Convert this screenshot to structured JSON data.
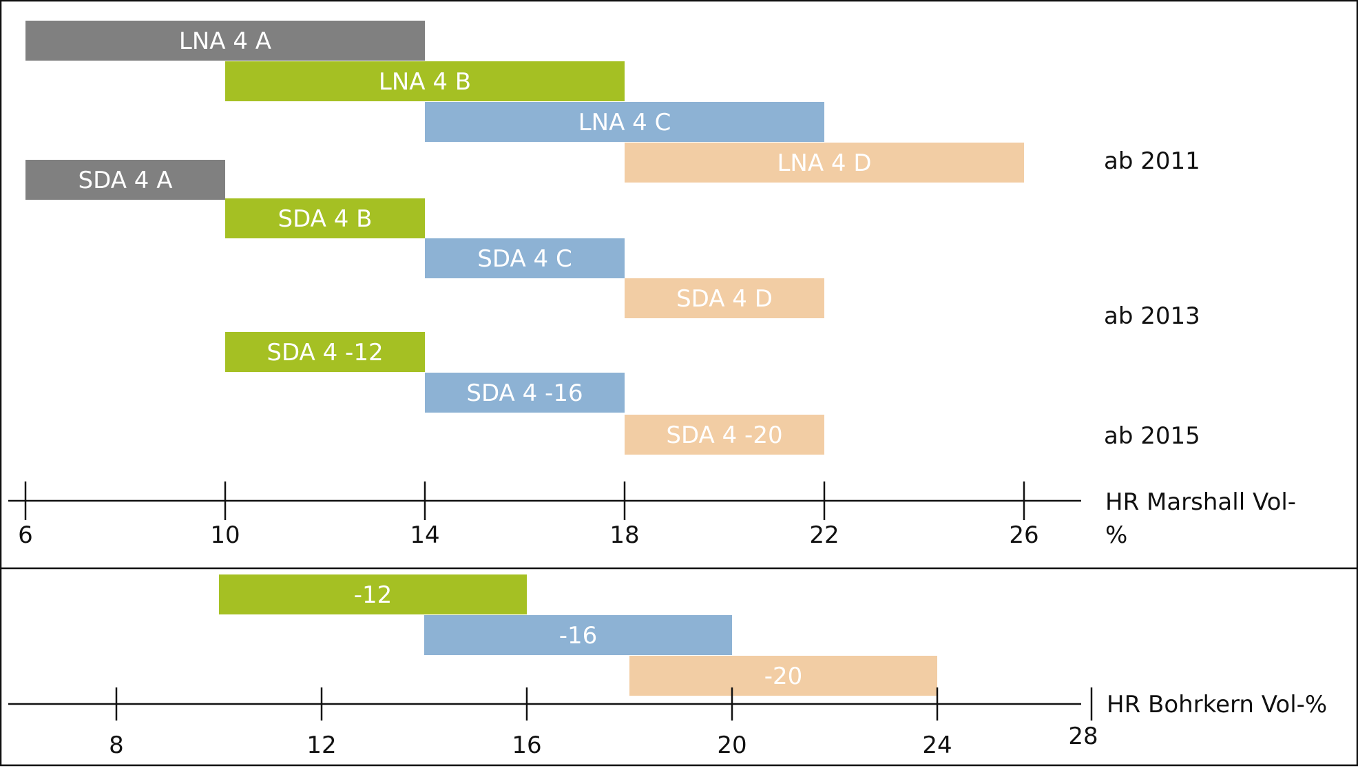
{
  "chart_data": [
    {
      "type": "bar",
      "orientation": "horizontal-range",
      "xlabel": [
        "HR Marshall Vol-",
        "%"
      ],
      "ticks": [
        6,
        10,
        14,
        18,
        22,
        26
      ],
      "xlim": [
        6,
        26
      ],
      "bars": [
        {
          "label": "LNA 4 A",
          "start": 6,
          "end": 14,
          "color": "#808080"
        },
        {
          "label": "LNA 4 B",
          "start": 10,
          "end": 18,
          "color": "#a5c023"
        },
        {
          "label": "LNA 4 C",
          "start": 14,
          "end": 22,
          "color": "#8db2d4"
        },
        {
          "label": "LNA 4 D",
          "start": 18,
          "end": 26,
          "color": "#f2cda4"
        },
        {
          "label": "SDA 4 A",
          "start": 6,
          "end": 10,
          "color": "#808080"
        },
        {
          "label": "SDA 4 B",
          "start": 10,
          "end": 14,
          "color": "#a5c023"
        },
        {
          "label": "SDA 4 C",
          "start": 14,
          "end": 18,
          "color": "#8db2d4"
        },
        {
          "label": "SDA 4 D",
          "start": 18,
          "end": 22,
          "color": "#f2cda4"
        },
        {
          "label": "SDA 4 -12",
          "start": 10,
          "end": 14,
          "color": "#a5c023"
        },
        {
          "label": "SDA 4 -16",
          "start": 14,
          "end": 18,
          "color": "#8db2d4"
        },
        {
          "label": "SDA 4 -20",
          "start": 18,
          "end": 22,
          "color": "#f2cda4"
        }
      ],
      "annotations": [
        "ab 2011",
        "ab 2013",
        "ab 2015"
      ]
    },
    {
      "type": "bar",
      "orientation": "horizontal-range",
      "xlabel": [
        "HR Bohrkern Vol-%"
      ],
      "ticks": [
        8,
        12,
        16,
        20,
        24,
        28
      ],
      "xlim": [
        8,
        28
      ],
      "bars": [
        {
          "label": "-12",
          "start": 10,
          "end": 16,
          "color": "#a5c023"
        },
        {
          "label": "-16",
          "start": 14,
          "end": 20,
          "color": "#8db2d4"
        },
        {
          "label": "-20",
          "start": 18,
          "end": 24,
          "color": "#f2cda4"
        }
      ]
    }
  ]
}
